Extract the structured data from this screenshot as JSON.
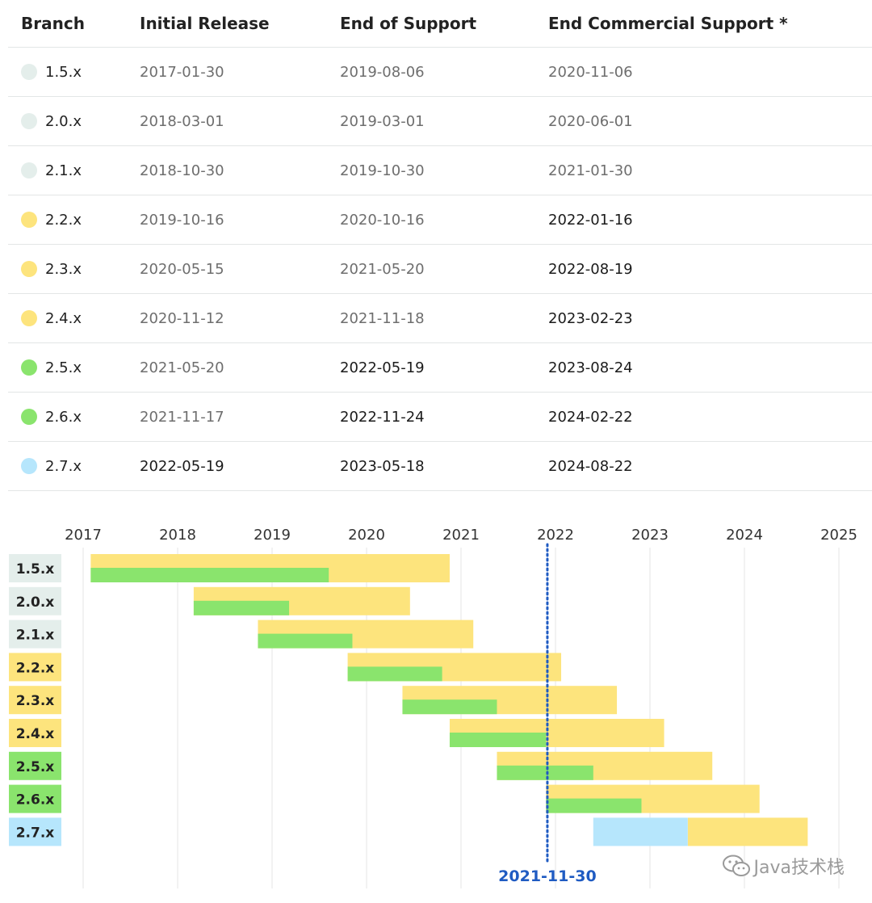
{
  "table": {
    "headers": [
      "Branch",
      "Initial Release",
      "End of Support",
      "End Commercial Support *"
    ],
    "rows": [
      {
        "branch": "1.5.x",
        "initial": "2017-01-30",
        "eos": "2019-08-06",
        "ecs": "2020-11-06",
        "color": "#e4eeeb",
        "eos_current": false,
        "ecs_current": false
      },
      {
        "branch": "2.0.x",
        "initial": "2018-03-01",
        "eos": "2019-03-01",
        "ecs": "2020-06-01",
        "color": "#e4eeeb",
        "eos_current": false,
        "ecs_current": false
      },
      {
        "branch": "2.1.x",
        "initial": "2018-10-30",
        "eos": "2019-10-30",
        "ecs": "2021-01-30",
        "color": "#e4eeeb",
        "eos_current": false,
        "ecs_current": false
      },
      {
        "branch": "2.2.x",
        "initial": "2019-10-16",
        "eos": "2020-10-16",
        "ecs": "2022-01-16",
        "color": "#fde47d",
        "eos_current": false,
        "ecs_current": true
      },
      {
        "branch": "2.3.x",
        "initial": "2020-05-15",
        "eos": "2021-05-20",
        "ecs": "2022-08-19",
        "color": "#fde47d",
        "eos_current": false,
        "ecs_current": true
      },
      {
        "branch": "2.4.x",
        "initial": "2020-11-12",
        "eos": "2021-11-18",
        "ecs": "2023-02-23",
        "color": "#fde47d",
        "eos_current": false,
        "ecs_current": true
      },
      {
        "branch": "2.5.x",
        "initial": "2021-05-20",
        "eos": "2022-05-19",
        "ecs": "2023-08-24",
        "color": "#8ae46d",
        "eos_current": true,
        "ecs_current": true
      },
      {
        "branch": "2.6.x",
        "initial": "2021-11-17",
        "eos": "2022-11-24",
        "ecs": "2024-02-22",
        "color": "#8ae46d",
        "eos_current": true,
        "ecs_current": true
      },
      {
        "branch": "2.7.x",
        "initial": "2022-05-19",
        "eos": "2023-05-18",
        "ecs": "2024-08-22",
        "color": "#b6e6fc",
        "initial_current": true,
        "eos_current": true,
        "ecs_current": true
      }
    ]
  },
  "chart_data": {
    "type": "gantt",
    "x_ticks": [
      "2017",
      "2018",
      "2019",
      "2020",
      "2021",
      "2022",
      "2023",
      "2024",
      "2025"
    ],
    "xlim": [
      2017,
      2025
    ],
    "grid": true,
    "today_label": "2021-11-30",
    "today": 2021.914,
    "colors": {
      "commercial": "#fde47d",
      "oss_supported": "#8ae46d",
      "oss_future": "#b6e6fc",
      "ended_label": "#e4eeeb",
      "today_line": "#1f5bc2"
    },
    "series": [
      {
        "branch": "1.5.x",
        "start": 2017.08,
        "eos": 2019.6,
        "ecs": 2020.88
      },
      {
        "branch": "2.0.x",
        "start": 2018.17,
        "eos": 2019.18,
        "ecs": 2020.46
      },
      {
        "branch": "2.1.x",
        "start": 2018.85,
        "eos": 2019.85,
        "ecs": 2021.13
      },
      {
        "branch": "2.2.x",
        "start": 2019.8,
        "eos": 2020.8,
        "ecs": 2022.06
      },
      {
        "branch": "2.3.x",
        "start": 2020.38,
        "eos": 2021.38,
        "ecs": 2022.65
      },
      {
        "branch": "2.4.x",
        "start": 2020.88,
        "eos": 2021.9,
        "ecs": 2023.15
      },
      {
        "branch": "2.5.x",
        "start": 2021.38,
        "eos": 2022.4,
        "ecs": 2023.66
      },
      {
        "branch": "2.6.x",
        "start": 2021.9,
        "eos": 2022.91,
        "ecs": 2024.16
      },
      {
        "branch": "2.7.x",
        "start": 2022.4,
        "eos": 2023.4,
        "ecs": 2024.67
      }
    ]
  },
  "watermark": {
    "text": "Java技术栈",
    "icon": "wechat-icon"
  }
}
